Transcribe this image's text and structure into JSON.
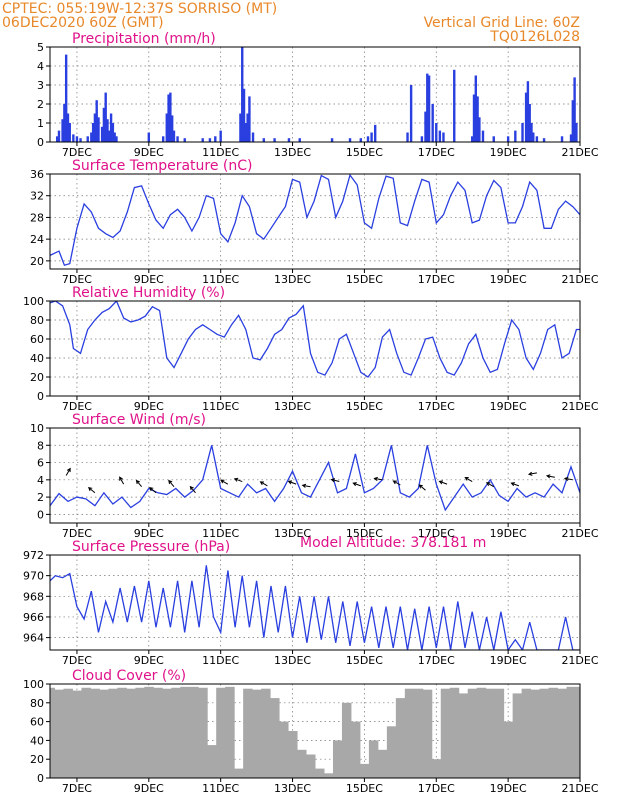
{
  "header": {
    "line1_left": "CPTEC:   055:19W-12:37S   SORRISO (MT)",
    "line2_left": "06DEC2020 60Z (GMT)",
    "line2_right": "Vertical Grid Line: 60Z",
    "line3_right": "TQ0126L028"
  },
  "model_altitude": "Model Altitude: 378.181 m",
  "x_ticks": [
    "7DEC",
    "9DEC",
    "11DEC",
    "13DEC",
    "15DEC",
    "17DEC",
    "19DEC",
    "21DEC"
  ],
  "colors": {
    "series": "#2a3fe0",
    "cloud": "#a8a8a8",
    "title": "#e0128a",
    "header": "#e8882a"
  },
  "chart_data": [
    {
      "type": "bar",
      "title": "Precipitation (mm/h)",
      "xlim": [
        6.25,
        21
      ],
      "ylim": [
        0,
        5
      ],
      "yticks": [
        0,
        1,
        2,
        3,
        4,
        5
      ],
      "x": [
        6.45,
        6.5,
        6.6,
        6.65,
        6.7,
        6.75,
        6.8,
        6.9,
        7.0,
        7.1,
        7.3,
        7.4,
        7.45,
        7.5,
        7.55,
        7.6,
        7.7,
        7.75,
        7.8,
        7.85,
        7.9,
        7.95,
        8.0,
        8.05,
        8.1,
        9.0,
        9.4,
        9.5,
        9.55,
        9.6,
        9.65,
        9.7,
        9.8,
        10.0,
        10.5,
        10.7,
        10.85,
        11.0,
        11.55,
        11.6,
        11.65,
        11.7,
        11.75,
        11.8,
        11.9,
        12.2,
        12.5,
        12.9,
        13.2,
        14.1,
        14.6,
        14.9,
        15.1,
        15.2,
        15.3,
        16.2,
        16.3,
        16.6,
        16.7,
        16.75,
        16.8,
        16.9,
        17.0,
        17.1,
        17.2,
        17.5,
        18.0,
        18.05,
        18.1,
        18.15,
        18.2,
        18.3,
        18.6,
        19.0,
        19.2,
        19.4,
        19.5,
        19.55,
        19.6,
        19.65,
        19.7,
        19.8,
        20.0,
        20.5,
        20.75,
        20.8,
        20.85,
        20.9
      ],
      "values": [
        0.3,
        0.6,
        1.2,
        2.0,
        4.6,
        1.5,
        1.0,
        0.4,
        0.3,
        0.2,
        0.3,
        0.5,
        1.0,
        1.5,
        2.2,
        1.3,
        0.8,
        1.8,
        2.6,
        1.2,
        0.6,
        1.5,
        1.0,
        0.5,
        0.3,
        0.5,
        0.3,
        1.5,
        2.5,
        2.6,
        1.4,
        0.6,
        0.3,
        0.2,
        0.2,
        0.2,
        0.3,
        0.6,
        1.5,
        5.0,
        2.8,
        1.0,
        1.5,
        2.4,
        0.5,
        0.2,
        0.2,
        0.2,
        0.2,
        0.2,
        0.2,
        0.2,
        0.3,
        0.5,
        0.9,
        0.5,
        3.0,
        0.3,
        1.6,
        3.6,
        3.5,
        2.0,
        1.0,
        0.6,
        0.5,
        3.8,
        0.3,
        2.5,
        3.5,
        2.4,
        1.3,
        0.6,
        0.3,
        0.3,
        0.6,
        1.0,
        2.6,
        3.2,
        2.0,
        1.0,
        0.5,
        0.3,
        0.2,
        0.3,
        0.4,
        2.2,
        3.4,
        1.0
      ]
    },
    {
      "type": "line",
      "title": "Surface Temperature (nC)",
      "xlim": [
        6.25,
        21
      ],
      "ylim": [
        18.5,
        36
      ],
      "yticks": [
        20,
        24,
        28,
        32,
        36
      ],
      "x": [
        6.25,
        6.5,
        6.65,
        6.8,
        7.0,
        7.2,
        7.4,
        7.6,
        7.8,
        8.0,
        8.2,
        8.4,
        8.6,
        8.8,
        9.0,
        9.2,
        9.4,
        9.6,
        9.8,
        10.0,
        10.2,
        10.4,
        10.6,
        10.8,
        11.0,
        11.2,
        11.4,
        11.6,
        11.8,
        12.0,
        12.2,
        12.4,
        12.6,
        12.8,
        13.0,
        13.2,
        13.4,
        13.6,
        13.8,
        14.0,
        14.2,
        14.4,
        14.6,
        14.8,
        15.0,
        15.2,
        15.4,
        15.6,
        15.8,
        16.0,
        16.2,
        16.4,
        16.6,
        16.8,
        17.0,
        17.2,
        17.4,
        17.6,
        17.8,
        18.0,
        18.2,
        18.4,
        18.6,
        18.8,
        19.0,
        19.2,
        19.4,
        19.6,
        19.8,
        20.0,
        20.2,
        20.4,
        20.6,
        20.8,
        21.0
      ],
      "values": [
        21,
        21.8,
        19.2,
        19.5,
        26,
        30.5,
        29,
        26,
        25,
        24.3,
        25.5,
        29,
        33.5,
        33.8,
        30.5,
        27.5,
        26,
        28.5,
        29.5,
        28,
        25.5,
        28,
        32,
        31.5,
        25,
        23.5,
        27,
        32,
        30,
        25,
        24,
        26,
        28,
        30,
        35,
        34.5,
        28,
        31,
        35.7,
        35,
        28,
        31,
        35.8,
        34,
        27,
        26,
        31.5,
        35.6,
        35.2,
        27,
        26.5,
        31,
        35,
        34.5,
        27,
        28.5,
        32,
        34.5,
        33,
        27,
        27.5,
        32,
        34.8,
        33.5,
        27,
        27,
        30,
        34.5,
        33,
        26,
        26,
        29.5,
        31,
        30,
        28.5
      ]
    },
    {
      "type": "line",
      "title": "Relative Humidity (%)",
      "xlim": [
        6.25,
        21
      ],
      "ylim": [
        0,
        100
      ],
      "yticks": [
        0,
        20,
        40,
        60,
        80,
        100
      ],
      "x": [
        6.25,
        6.4,
        6.6,
        6.8,
        6.9,
        7.1,
        7.3,
        7.5,
        7.7,
        7.9,
        8.1,
        8.3,
        8.5,
        8.7,
        8.9,
        9.1,
        9.3,
        9.5,
        9.7,
        9.9,
        10.1,
        10.3,
        10.5,
        10.7,
        10.9,
        11.1,
        11.3,
        11.5,
        11.7,
        11.9,
        12.1,
        12.3,
        12.5,
        12.7,
        12.9,
        13.1,
        13.3,
        13.5,
        13.7,
        13.9,
        14.1,
        14.3,
        14.5,
        14.7,
        14.9,
        15.1,
        15.3,
        15.5,
        15.7,
        15.9,
        16.1,
        16.3,
        16.5,
        16.7,
        16.9,
        17.1,
        17.3,
        17.5,
        17.7,
        17.9,
        18.1,
        18.3,
        18.5,
        18.7,
        18.9,
        19.1,
        19.3,
        19.5,
        19.7,
        19.9,
        20.1,
        20.3,
        20.5,
        20.7,
        20.9,
        21.0
      ],
      "values": [
        98,
        100,
        95,
        75,
        50,
        45,
        70,
        80,
        88,
        92,
        100,
        82,
        78,
        80,
        84,
        94,
        90,
        40,
        30,
        45,
        60,
        70,
        75,
        70,
        65,
        62,
        75,
        85,
        70,
        40,
        38,
        50,
        65,
        70,
        82,
        86,
        95,
        45,
        25,
        22,
        35,
        60,
        65,
        45,
        25,
        20,
        30,
        62,
        70,
        45,
        25,
        22,
        40,
        60,
        62,
        40,
        25,
        22,
        35,
        55,
        65,
        40,
        25,
        28,
        55,
        80,
        70,
        40,
        28,
        45,
        70,
        75,
        40,
        45,
        70,
        70
      ]
    },
    {
      "type": "line",
      "title": "Surface Wind (m/s)",
      "xlim": [
        6.25,
        21
      ],
      "ylim": [
        -1,
        10
      ],
      "yticks": [
        0,
        2,
        4,
        6,
        8,
        10
      ],
      "x": [
        6.25,
        6.5,
        6.75,
        7.0,
        7.25,
        7.5,
        7.75,
        8.0,
        8.25,
        8.5,
        8.75,
        9.0,
        9.25,
        9.5,
        9.75,
        10.0,
        10.25,
        10.5,
        10.75,
        11.0,
        11.25,
        11.5,
        11.75,
        12.0,
        12.25,
        12.5,
        12.75,
        13.0,
        13.25,
        13.5,
        13.75,
        14.0,
        14.25,
        14.5,
        14.75,
        15.0,
        15.25,
        15.5,
        15.75,
        16.0,
        16.25,
        16.5,
        16.75,
        17.0,
        17.25,
        17.5,
        17.75,
        18.0,
        18.25,
        18.5,
        18.75,
        19.0,
        19.25,
        19.5,
        19.75,
        20.0,
        20.25,
        20.5,
        20.75,
        21.0
      ],
      "values": [
        1,
        2.4,
        1.5,
        2,
        1.8,
        1,
        2.5,
        1.2,
        2,
        0.8,
        1.5,
        3,
        2.5,
        2.3,
        3,
        2,
        2.8,
        4,
        8,
        3,
        2.5,
        2,
        3.5,
        2.5,
        3,
        1.5,
        3,
        5,
        2.5,
        2,
        4,
        6,
        2.5,
        3,
        7,
        2.5,
        3,
        4,
        8,
        2.5,
        2,
        3,
        8,
        3.5,
        0.5,
        2,
        3.5,
        2,
        2.5,
        4,
        2.2,
        1.5,
        3,
        2,
        2.5,
        2,
        3.5,
        2.5,
        5.5,
        2.5
      ]
    },
    {
      "type": "line",
      "title": "Surface Pressure (hPa)",
      "xlim": [
        6.25,
        21
      ],
      "ylim": [
        962.8,
        972
      ],
      "yticks": [
        964,
        966,
        968,
        970,
        972
      ],
      "x": [
        6.25,
        6.4,
        6.6,
        6.8,
        7.0,
        7.2,
        7.4,
        7.6,
        7.8,
        8.0,
        8.2,
        8.4,
        8.6,
        8.8,
        9.0,
        9.2,
        9.4,
        9.6,
        9.8,
        10.0,
        10.2,
        10.4,
        10.6,
        10.8,
        11.0,
        11.2,
        11.4,
        11.6,
        11.8,
        12.0,
        12.2,
        12.4,
        12.6,
        12.8,
        13.0,
        13.2,
        13.4,
        13.6,
        13.8,
        14.0,
        14.2,
        14.4,
        14.6,
        14.8,
        15.0,
        15.2,
        15.4,
        15.6,
        15.8,
        16.0,
        16.2,
        16.4,
        16.6,
        16.8,
        17.0,
        17.2,
        17.4,
        17.6,
        17.8,
        18.0,
        18.2,
        18.4,
        18.6,
        18.8,
        19.0,
        19.2,
        19.4,
        19.6,
        19.8,
        20.0,
        20.2,
        20.4,
        20.6,
        20.8,
        21.0
      ],
      "values": [
        969.5,
        970,
        969.8,
        970.2,
        967,
        965.8,
        968.5,
        964.5,
        967.5,
        965.5,
        968.8,
        965.5,
        969,
        965.5,
        969.5,
        965,
        968.8,
        965,
        969.5,
        964.5,
        969.5,
        965,
        971,
        966,
        964.5,
        970.5,
        965,
        970,
        965,
        969.5,
        964,
        969,
        964.5,
        969,
        964,
        968,
        963.5,
        968,
        963.8,
        968,
        963.5,
        967.5,
        963.2,
        967.5,
        963.5,
        967,
        963,
        967,
        963,
        967,
        962.8,
        966.8,
        962.8,
        967,
        963,
        967,
        962.8,
        967.5,
        963,
        966.5,
        962.8,
        966,
        962.8,
        966.5,
        962.8,
        963.8,
        962.8,
        965.5,
        962.8,
        962.8,
        962.8,
        962.8,
        966,
        962.8,
        962.8
      ]
    },
    {
      "type": "bar",
      "title": "Cloud Cover (%)",
      "xlim": [
        6.25,
        21
      ],
      "ylim": [
        0,
        100
      ],
      "yticks": [
        0,
        20,
        40,
        60,
        80,
        100
      ],
      "x": [
        6.25,
        6.5,
        6.75,
        7.0,
        7.25,
        7.5,
        7.75,
        8.0,
        8.25,
        8.5,
        8.75,
        9.0,
        9.25,
        9.5,
        9.75,
        10.0,
        10.25,
        10.5,
        10.75,
        11.0,
        11.25,
        11.5,
        11.75,
        12.0,
        12.25,
        12.5,
        12.75,
        13.0,
        13.25,
        13.5,
        13.75,
        14.0,
        14.25,
        14.5,
        14.75,
        15.0,
        15.25,
        15.5,
        15.75,
        16.0,
        16.25,
        16.5,
        16.75,
        17.0,
        17.25,
        17.5,
        17.75,
        18.0,
        18.25,
        18.5,
        18.75,
        19.0,
        19.25,
        19.5,
        19.75,
        20.0,
        20.25,
        20.5,
        20.75,
        21.0
      ],
      "values": [
        96,
        94,
        95,
        93,
        96,
        95,
        94,
        95,
        96,
        95,
        96,
        97,
        96,
        95,
        96,
        97,
        97,
        96,
        35,
        96,
        97,
        10,
        95,
        94,
        95,
        85,
        60,
        50,
        30,
        25,
        10,
        5,
        40,
        80,
        60,
        15,
        40,
        30,
        55,
        85,
        95,
        95,
        94,
        20,
        95,
        96,
        90,
        95,
        96,
        95,
        95,
        60,
        90,
        95,
        94,
        95,
        96,
        95,
        97,
        97
      ]
    }
  ]
}
